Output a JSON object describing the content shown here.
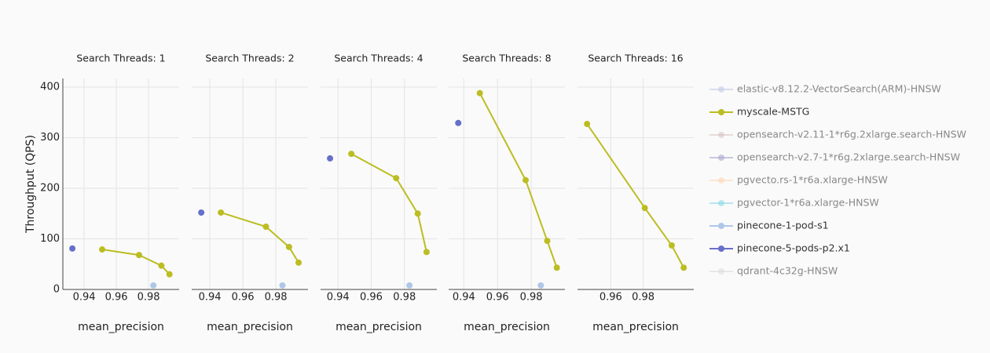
{
  "chart_data": [
    {
      "type": "line",
      "title": "Search Threads: 1",
      "x_label": "mean_precision",
      "y_label": "Throughput (QPS)",
      "xlim": [
        0.9268,
        0.999
      ],
      "xticks": [
        0.94,
        0.96,
        0.98
      ],
      "ylim": [
        0,
        417
      ],
      "yticks": [
        0,
        100,
        200,
        300,
        400
      ],
      "grid": true,
      "series": [
        {
          "color": "#6670c9",
          "x": [
            0.9327
          ],
          "values": [
            81
          ]
        },
        {
          "color": "#bcbd22",
          "x": [
            0.9512,
            0.9741,
            0.988,
            0.993
          ],
          "values": [
            79,
            68,
            47,
            30
          ]
        },
        {
          "color": "#aec7e8",
          "x": [
            0.983
          ],
          "values": [
            8
          ]
        }
      ]
    },
    {
      "type": "line",
      "title": "Search Threads: 2",
      "x_label": "mean_precision",
      "xlim": [
        0.929,
        0.9995
      ],
      "xticks": [
        0.94,
        0.96,
        0.98
      ],
      "ylim": [
        0,
        417
      ],
      "yticks": [
        0,
        100,
        200,
        300,
        400
      ],
      "grid": true,
      "series": [
        {
          "color": "#6670c9",
          "x": [
            0.9348
          ],
          "values": [
            152
          ]
        },
        {
          "color": "#bcbd22",
          "x": [
            0.9467,
            0.974,
            0.988,
            0.9938
          ],
          "values": [
            152,
            124,
            84,
            53
          ]
        },
        {
          "color": "#aec7e8",
          "x": [
            0.984
          ],
          "values": [
            8
          ]
        }
      ]
    },
    {
      "type": "line",
      "title": "Search Threads: 4",
      "x_label": "mean_precision",
      "xlim": [
        0.9295,
        0.9995
      ],
      "xticks": [
        0.94,
        0.96,
        0.98
      ],
      "ylim": [
        0,
        417
      ],
      "yticks": [
        0,
        100,
        200,
        300,
        400
      ],
      "grid": true,
      "series": [
        {
          "color": "#6670c9",
          "x": [
            0.9352
          ],
          "values": [
            259
          ]
        },
        {
          "color": "#bcbd22",
          "x": [
            0.948,
            0.975,
            0.988,
            0.9933
          ],
          "values": [
            268,
            220,
            150,
            74
          ]
        },
        {
          "color": "#aec7e8",
          "x": [
            0.983
          ],
          "values": [
            8
          ]
        }
      ]
    },
    {
      "type": "line",
      "title": "Search Threads: 8",
      "x_label": "mean_precision",
      "xlim": [
        0.931,
        1.0
      ],
      "xticks": [
        0.94,
        0.96,
        0.98
      ],
      "ylim": [
        0,
        417
      ],
      "yticks": [
        0,
        100,
        200,
        300,
        400
      ],
      "grid": true,
      "series": [
        {
          "color": "#6670c9",
          "x": [
            0.9367
          ],
          "values": [
            329
          ]
        },
        {
          "color": "#bcbd22",
          "x": [
            0.9495,
            0.9767,
            0.9895,
            0.9952
          ],
          "values": [
            388,
            216,
            96,
            43
          ]
        },
        {
          "color": "#aec7e8",
          "x": [
            0.9857
          ],
          "values": [
            8
          ]
        }
      ]
    },
    {
      "type": "line",
      "title": "Search Threads: 16",
      "x_label": "mean_precision",
      "xlim": [
        0.9395,
        1.0112
      ],
      "xticks": [
        0.96,
        0.98
      ],
      "ylim": [
        0,
        417
      ],
      "yticks": [
        0,
        100,
        200,
        300,
        400
      ],
      "grid": true,
      "series": [
        {
          "color": "#bcbd22",
          "x": [
            0.9454,
            0.981,
            0.9976,
            1.005
          ],
          "values": [
            327,
            161,
            87,
            43
          ]
        }
      ]
    }
  ],
  "legend": [
    {
      "name": "elastic-v8.12.2-VectorSearch(ARM)-HNSW",
      "color": "#c5cbe8",
      "visible": false
    },
    {
      "name": "myscale-MSTG",
      "color": "#bcbd22",
      "visible": true
    },
    {
      "name": "opensearch-v2.11-1*r6g.2xlarge.search-HNSW",
      "color": "#dcc5c5",
      "visible": false
    },
    {
      "name": "opensearch-v2.7-1*r6g.2xlarge.search-HNSW",
      "color": "#a8a8d0",
      "visible": false
    },
    {
      "name": "pgvecto.rs-1*r6a.xlarge-HNSW",
      "color": "#fdd9b5",
      "visible": false
    },
    {
      "name": "pgvector-1*r6a.xlarge-HNSW",
      "color": "#8bd8e6",
      "visible": false
    },
    {
      "name": "pinecone-1-pod-s1",
      "color": "#aec7e8",
      "visible": true
    },
    {
      "name": "pinecone-5-pods-p2.x1",
      "color": "#6670c9",
      "visible": true
    },
    {
      "name": "qdrant-4c32g-HNSW",
      "color": "#dddddd",
      "visible": false
    }
  ]
}
